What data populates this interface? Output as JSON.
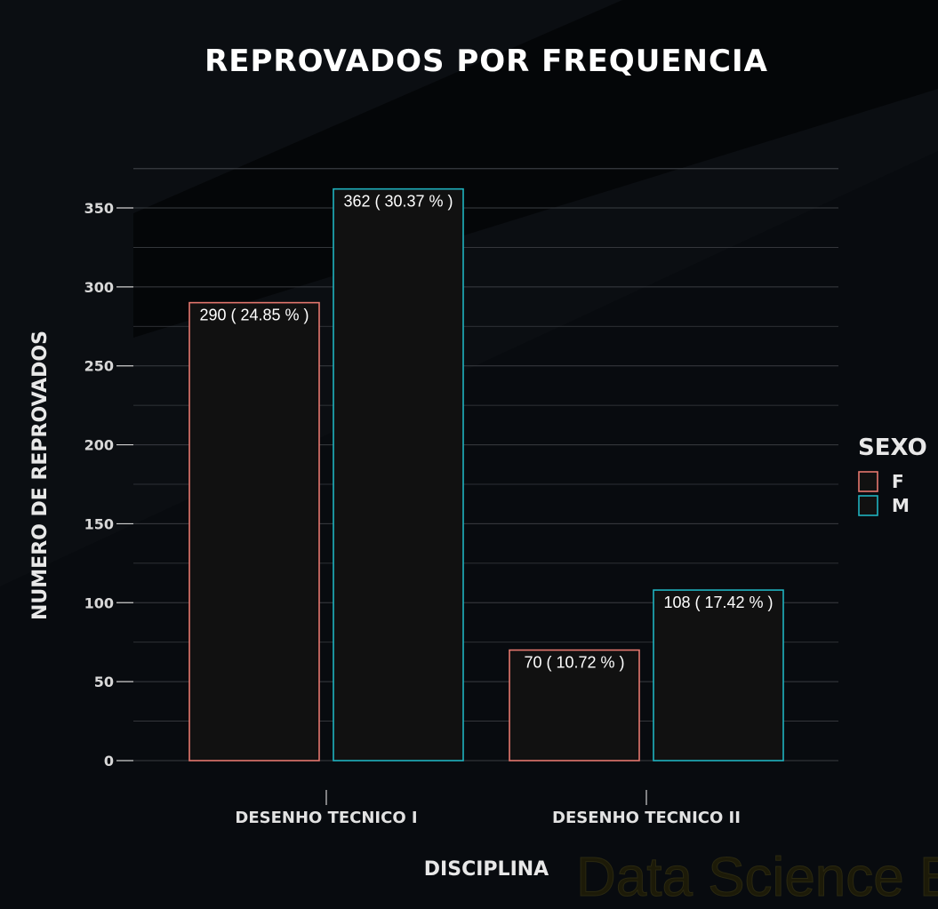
{
  "colors": {
    "background": "#080b0f",
    "panel_shadow": "#000000",
    "grid": "#3a3d42",
    "bar_fill": "#111111",
    "F": "#e5776e",
    "M": "#1fb2bf"
  },
  "watermark": "Data Science Broon",
  "chart_data": {
    "type": "bar",
    "title": "REPROVADOS POR FREQUENCIA",
    "xlabel": "DISCIPLINA",
    "ylabel": "NUMERO DE REPROVADOS",
    "ylim": [
      0,
      375
    ],
    "yticks": [
      0,
      50,
      100,
      150,
      200,
      250,
      300,
      350
    ],
    "categories": [
      "DESENHO TECNICO I",
      "DESENHO TECNICO II"
    ],
    "legend": {
      "title": "SEXO",
      "position": "right"
    },
    "series": [
      {
        "name": "F",
        "values": [
          290,
          70
        ],
        "labels": [
          "290 ( 24.85 % )",
          "70 ( 10.72 % )"
        ]
      },
      {
        "name": "M",
        "values": [
          362,
          108
        ],
        "labels": [
          "362 ( 30.37 % )",
          "108 ( 17.42 % )"
        ]
      }
    ]
  }
}
